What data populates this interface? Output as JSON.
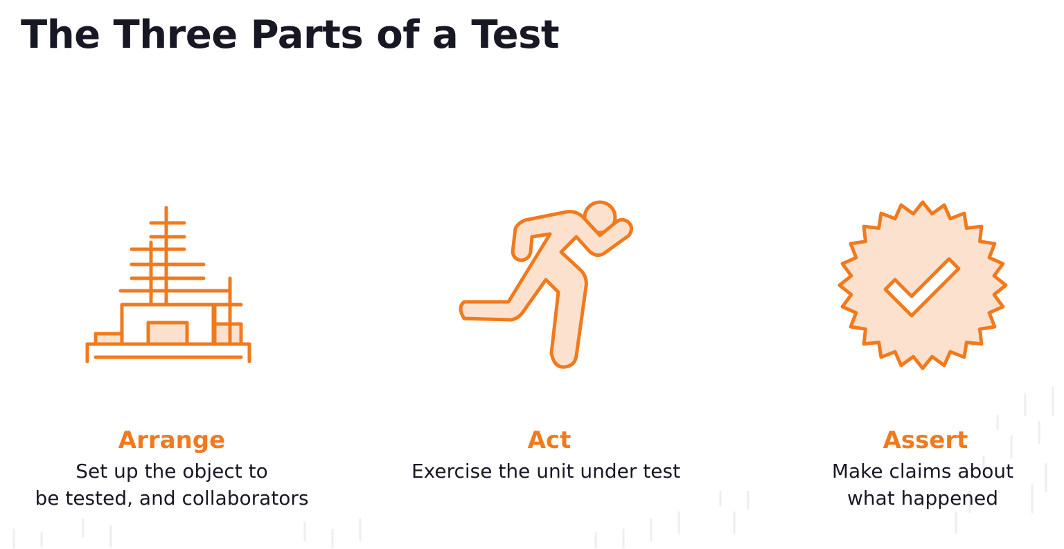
{
  "slide": {
    "title": "The Three Parts of a Test"
  },
  "colors": {
    "accent": "#F07A1E",
    "accent_fill": "#FCE2CE",
    "title_text": "#181825",
    "body_text": "#181825"
  },
  "parts": [
    {
      "icon": "scaffold-building-icon",
      "title": "Arrange",
      "lines": [
        "Set up the object to",
        "be tested, and collaborators"
      ]
    },
    {
      "icon": "running-person-icon",
      "title": "Act",
      "lines": [
        "Exercise the unit under test"
      ]
    },
    {
      "icon": "checkmark-badge-icon",
      "title": "Assert",
      "lines": [
        "Make claims about",
        "what happened"
      ]
    }
  ]
}
